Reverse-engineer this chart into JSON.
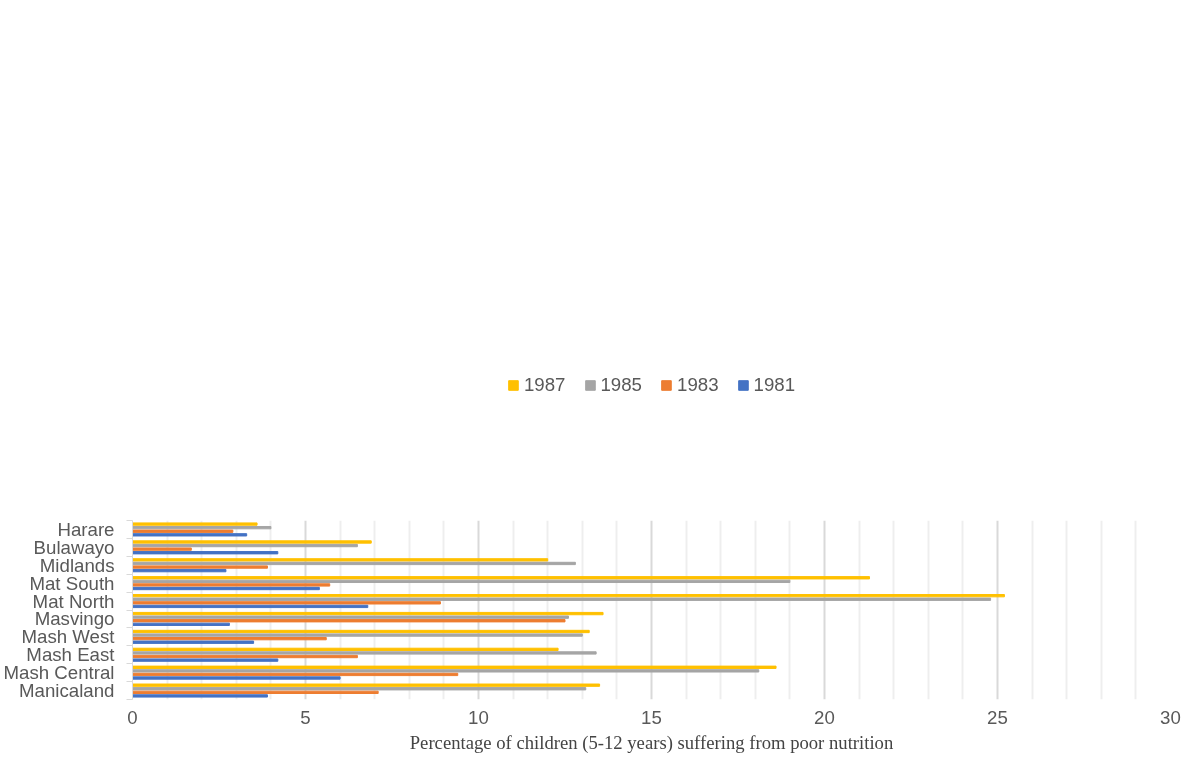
{
  "chart_data": {
    "type": "bar",
    "orientation": "horizontal",
    "xlabel": "Percentage of children (5-12 years) suffering from poor nutrition",
    "categories": [
      "Harare",
      "Bulawayo",
      "Midlands",
      "Mat South",
      "Mat North",
      "Masvingo",
      "Mash West",
      "Mash East",
      "Mash Central",
      "Manicaland"
    ],
    "series": [
      {
        "name": "1987",
        "color": "#ffc000",
        "values": [
          3.6,
          6.9,
          12.0,
          21.3,
          25.2,
          13.6,
          13.2,
          12.3,
          18.6,
          13.5
        ]
      },
      {
        "name": "1985",
        "color": "#a5a5a5",
        "values": [
          4.0,
          6.5,
          12.8,
          19.0,
          24.8,
          12.6,
          13.0,
          13.4,
          18.1,
          13.1
        ]
      },
      {
        "name": "1983",
        "color": "#ed7d31",
        "values": [
          2.9,
          1.7,
          3.9,
          5.7,
          8.9,
          12.5,
          5.6,
          6.5,
          9.4,
          7.1
        ]
      },
      {
        "name": "1981",
        "color": "#4472c4",
        "values": [
          3.3,
          4.2,
          2.7,
          5.4,
          6.8,
          2.8,
          3.5,
          4.2,
          6.0,
          3.9
        ]
      }
    ],
    "xlim": [
      0,
      30
    ],
    "xticks": [
      0,
      5,
      10,
      15,
      20,
      25,
      30
    ],
    "grid": "x",
    "legend": "top"
  }
}
